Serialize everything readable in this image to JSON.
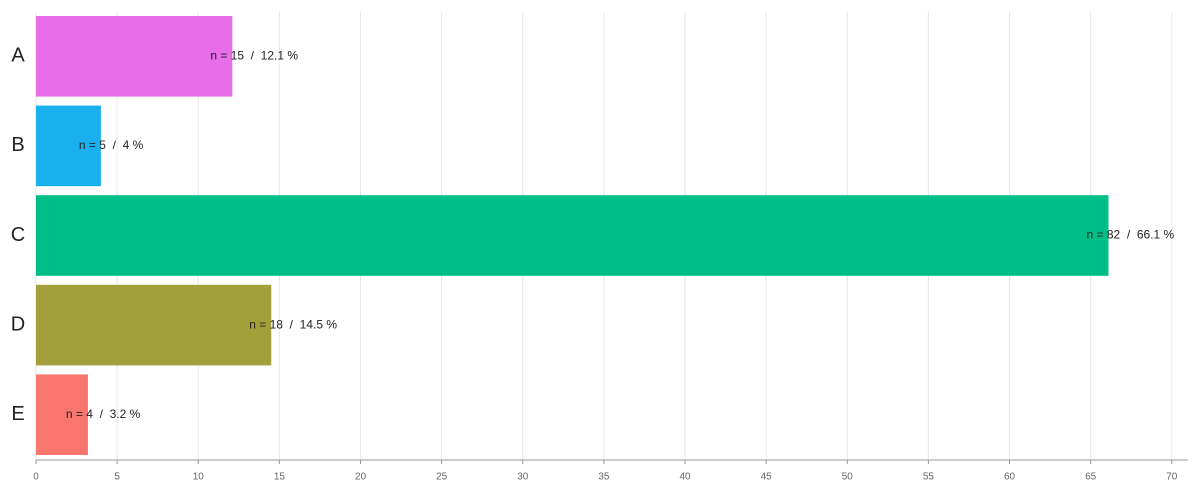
{
  "chart_data": {
    "type": "hbar",
    "categories": [
      "A",
      "B",
      "C",
      "D",
      "E"
    ],
    "values": [
      12.1,
      4,
      66.1,
      14.5,
      3.2
    ],
    "value_labels": [
      "n = 15  /  12.1 %",
      "n = 5  /  4 %",
      "n = 82  /  66.1 %",
      "n = 18  /  14.5 %",
      "n = 4  /  3.2 %"
    ],
    "colors": [
      "#e86de8",
      "#1ab0f0",
      "#00be87",
      "#a3a03c",
      "#f8766d"
    ],
    "xlim": [
      0,
      71
    ],
    "xticks": [
      0,
      5,
      10,
      15,
      20,
      25,
      30,
      35,
      40,
      45,
      50,
      55,
      60,
      65,
      70
    ],
    "grid": true
  }
}
